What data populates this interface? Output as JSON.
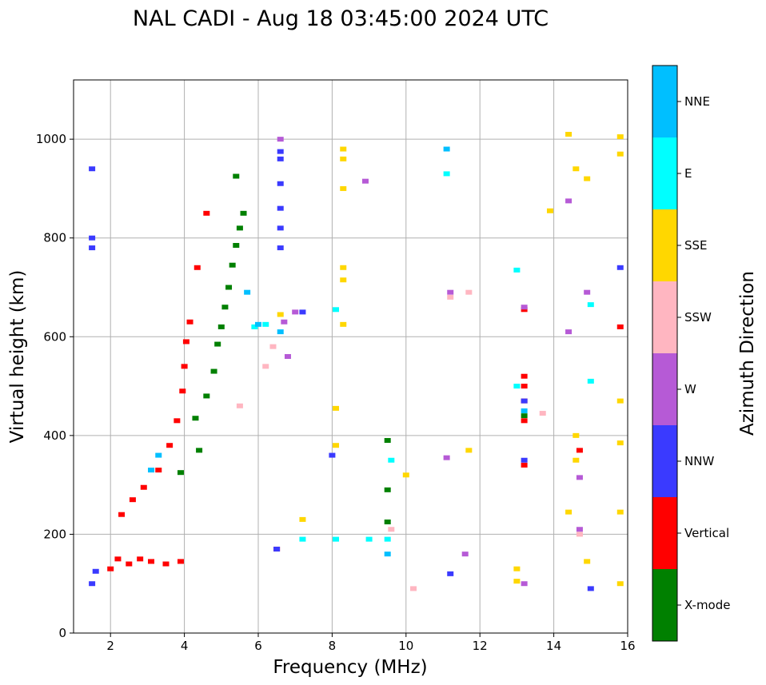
{
  "chart_data": {
    "type": "scatter",
    "title": "NAL CADI - Aug 18 03:45:00 2024 UTC",
    "xlabel": "Frequency (MHz)",
    "ylabel": "Virtual height (km)",
    "xlim": [
      1,
      16
    ],
    "ylim": [
      0,
      1120
    ],
    "xticks": [
      2,
      4,
      6,
      8,
      10,
      12,
      14,
      16
    ],
    "yticks": [
      0,
      200,
      400,
      600,
      800,
      1000
    ],
    "grid": true,
    "colorbar": {
      "label": "Azimuth Direction",
      "categories": [
        {
          "name": "X-mode",
          "color": "#008000"
        },
        {
          "name": "Vertical",
          "color": "#ff0000"
        },
        {
          "name": "NNW",
          "color": "#3a3aff"
        },
        {
          "name": "W",
          "color": "#b65ad6"
        },
        {
          "name": "SSW",
          "color": "#ffb6c1"
        },
        {
          "name": "SSE",
          "color": "#ffd700"
        },
        {
          "name": "E",
          "color": "#00ffff"
        },
        {
          "name": "NNE",
          "color": "#00bfff"
        }
      ]
    },
    "series": [
      {
        "name": "X-mode",
        "points": [
          [
            4.3,
            435
          ],
          [
            4.6,
            480
          ],
          [
            4.8,
            530
          ],
          [
            4.9,
            585
          ],
          [
            5.0,
            620
          ],
          [
            5.1,
            660
          ],
          [
            5.2,
            700
          ],
          [
            5.3,
            745
          ],
          [
            5.4,
            785
          ],
          [
            5.5,
            820
          ],
          [
            5.6,
            850
          ],
          [
            5.4,
            925
          ],
          [
            3.9,
            325
          ],
          [
            4.4,
            370
          ],
          [
            9.5,
            390
          ],
          [
            9.5,
            290
          ],
          [
            9.5,
            225
          ],
          [
            13.2,
            440
          ]
        ]
      },
      {
        "name": "Vertical",
        "points": [
          [
            2.0,
            130
          ],
          [
            2.2,
            150
          ],
          [
            2.5,
            140
          ],
          [
            2.8,
            150
          ],
          [
            3.1,
            145
          ],
          [
            3.5,
            140
          ],
          [
            3.9,
            145
          ],
          [
            2.3,
            240
          ],
          [
            2.6,
            270
          ],
          [
            2.9,
            295
          ],
          [
            3.3,
            330
          ],
          [
            3.6,
            380
          ],
          [
            3.8,
            430
          ],
          [
            3.95,
            490
          ],
          [
            4.0,
            540
          ],
          [
            4.05,
            590
          ],
          [
            4.15,
            630
          ],
          [
            4.35,
            740
          ],
          [
            4.6,
            850
          ],
          [
            13.2,
            520
          ],
          [
            13.2,
            500
          ],
          [
            13.2,
            470
          ],
          [
            13.2,
            430
          ],
          [
            13.2,
            340
          ],
          [
            6.5,
            170
          ],
          [
            14.7,
            370
          ],
          [
            13.2,
            655
          ],
          [
            15.8,
            620
          ]
        ]
      },
      {
        "name": "NNW",
        "points": [
          [
            1.5,
            100
          ],
          [
            1.6,
            125
          ],
          [
            1.5,
            940
          ],
          [
            1.5,
            800
          ],
          [
            1.5,
            780
          ],
          [
            6.6,
            975
          ],
          [
            6.6,
            960
          ],
          [
            6.6,
            910
          ],
          [
            6.6,
            860
          ],
          [
            6.6,
            820
          ],
          [
            6.6,
            780
          ],
          [
            7.2,
            650
          ],
          [
            6.5,
            170
          ],
          [
            8.0,
            360
          ],
          [
            11.2,
            120
          ],
          [
            15.0,
            90
          ],
          [
            13.2,
            350
          ],
          [
            13.2,
            470
          ],
          [
            15.8,
            740
          ]
        ]
      },
      {
        "name": "W",
        "points": [
          [
            6.6,
            1000
          ],
          [
            6.7,
            630
          ],
          [
            7.0,
            650
          ],
          [
            8.9,
            915
          ],
          [
            11.2,
            690
          ],
          [
            14.9,
            690
          ],
          [
            14.4,
            610
          ],
          [
            14.4,
            875
          ],
          [
            14.7,
            315
          ],
          [
            14.7,
            210
          ],
          [
            11.6,
            160
          ],
          [
            11.1,
            355
          ],
          [
            13.2,
            100
          ],
          [
            6.8,
            560
          ],
          [
            13.2,
            660
          ]
        ]
      },
      {
        "name": "SSW",
        "points": [
          [
            6.2,
            540
          ],
          [
            6.4,
            580
          ],
          [
            5.5,
            460
          ],
          [
            10.2,
            90
          ],
          [
            13.7,
            445
          ],
          [
            11.2,
            680
          ],
          [
            11.7,
            690
          ],
          [
            9.6,
            210
          ],
          [
            14.7,
            200
          ]
        ]
      },
      {
        "name": "SSE",
        "points": [
          [
            8.3,
            980
          ],
          [
            8.3,
            960
          ],
          [
            8.3,
            900
          ],
          [
            8.3,
            740
          ],
          [
            8.3,
            715
          ],
          [
            8.3,
            625
          ],
          [
            8.1,
            455
          ],
          [
            8.1,
            380
          ],
          [
            13.0,
            130
          ],
          [
            13.0,
            105
          ],
          [
            14.9,
            920
          ],
          [
            14.6,
            940
          ],
          [
            14.4,
            1010
          ],
          [
            15.8,
            1005
          ],
          [
            15.8,
            970
          ],
          [
            15.8,
            470
          ],
          [
            15.8,
            385
          ],
          [
            15.8,
            245
          ],
          [
            15.8,
            100
          ],
          [
            14.6,
            400
          ],
          [
            14.6,
            350
          ],
          [
            14.9,
            145
          ],
          [
            13.9,
            855
          ],
          [
            10.0,
            320
          ],
          [
            7.2,
            230
          ],
          [
            6.6,
            645
          ],
          [
            11.7,
            370
          ],
          [
            14.4,
            245
          ]
        ]
      },
      {
        "name": "E",
        "points": [
          [
            8.1,
            655
          ],
          [
            8.1,
            190
          ],
          [
            9.0,
            190
          ],
          [
            9.5,
            190
          ],
          [
            9.6,
            350
          ],
          [
            11.1,
            930
          ],
          [
            13.0,
            735
          ],
          [
            15.0,
            665
          ],
          [
            15.0,
            510
          ],
          [
            13.0,
            500
          ],
          [
            7.2,
            190
          ],
          [
            5.9,
            620
          ],
          [
            6.2,
            625
          ]
        ]
      },
      {
        "name": "NNE",
        "points": [
          [
            11.1,
            980
          ],
          [
            13.2,
            450
          ],
          [
            6.6,
            610
          ],
          [
            5.7,
            690
          ],
          [
            6.0,
            625
          ],
          [
            9.5,
            160
          ],
          [
            3.3,
            360
          ],
          [
            3.1,
            330
          ]
        ]
      }
    ]
  }
}
